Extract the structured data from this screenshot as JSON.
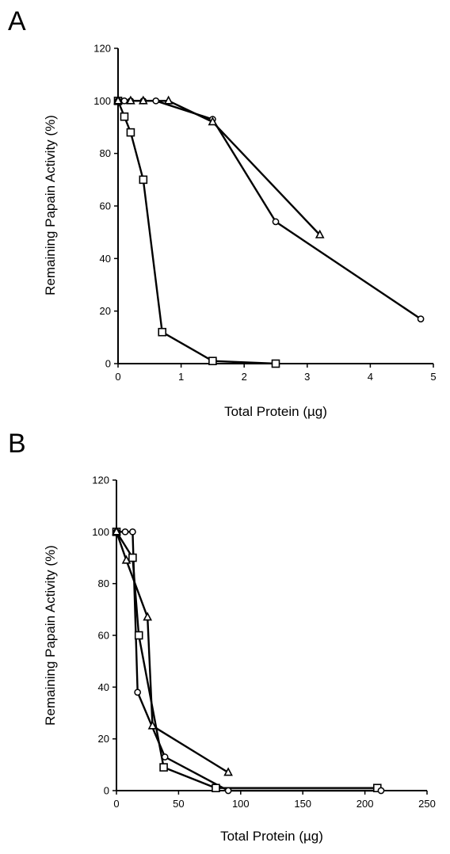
{
  "chart_data": [
    {
      "panel_label": "A",
      "type": "line",
      "xlabel": "Total Protein (µg)",
      "ylabel": "Remaining Papain Activity (%)",
      "xlim": [
        0,
        5
      ],
      "ylim": [
        0,
        120
      ],
      "xticks": [
        0,
        1,
        2,
        3,
        4,
        5
      ],
      "yticks": [
        0,
        20,
        40,
        60,
        80,
        100,
        120
      ],
      "grid": false,
      "legend": "none",
      "series": [
        {
          "marker": "square",
          "x": [
            0,
            0.1,
            0.2,
            0.4,
            0.7,
            1.5,
            2.5
          ],
          "y": [
            100,
            94,
            88,
            70,
            12,
            1,
            0
          ]
        },
        {
          "marker": "circle",
          "x": [
            0,
            0.1,
            0.2,
            0.4,
            0.6,
            1.5,
            2.5,
            4.8
          ],
          "y": [
            100,
            100,
            100,
            100,
            100,
            93,
            54,
            17
          ]
        },
        {
          "marker": "triangle",
          "x": [
            0,
            0.2,
            0.4,
            0.8,
            1.5,
            3.2
          ],
          "y": [
            100,
            100,
            100,
            100,
            92,
            49
          ]
        }
      ]
    },
    {
      "panel_label": "B",
      "type": "line",
      "xlabel": "Total Protein (µg)",
      "ylabel": "Remaining Papain Activity (%)",
      "xlim": [
        0,
        250
      ],
      "ylim": [
        0,
        120
      ],
      "xticks": [
        0,
        50,
        100,
        150,
        200,
        250
      ],
      "yticks": [
        0,
        20,
        40,
        60,
        80,
        100,
        120
      ],
      "grid": false,
      "legend": "none",
      "series": [
        {
          "marker": "square",
          "x": [
            0,
            13,
            18,
            38,
            80,
            210
          ],
          "y": [
            100,
            90,
            60,
            9,
            1,
            1
          ]
        },
        {
          "marker": "circle",
          "x": [
            0,
            7,
            13,
            17,
            39,
            90,
            213
          ],
          "y": [
            100,
            100,
            100,
            38,
            13,
            0,
            0
          ]
        },
        {
          "marker": "triangle",
          "x": [
            0,
            8,
            25,
            29,
            90
          ],
          "y": [
            100,
            89,
            67,
            25,
            7
          ]
        }
      ]
    }
  ]
}
